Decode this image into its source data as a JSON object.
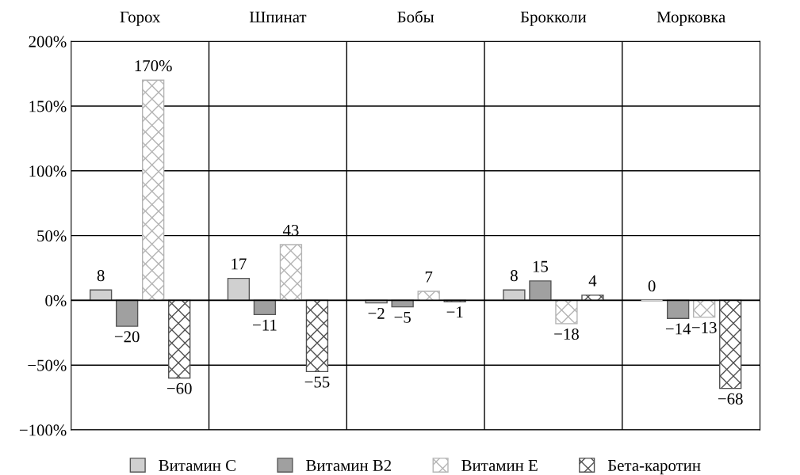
{
  "chart_data": {
    "type": "bar",
    "categories": [
      "Горох",
      "Шпинат",
      "Бобы",
      "Брокколи",
      "Морковка"
    ],
    "series": [
      {
        "name": "Витамин C",
        "color": "#d0d0d0",
        "values": [
          8,
          17,
          -2,
          8,
          0
        ],
        "value_labels": [
          "8",
          "17",
          "−2",
          "8",
          "0"
        ]
      },
      {
        "name": "Витамин B2",
        "color": "#a0a0a0",
        "values": [
          -20,
          -11,
          -5,
          15,
          -14
        ],
        "value_labels": [
          "−20",
          "−11",
          "−5",
          "15",
          "−14"
        ]
      },
      {
        "name": "Витамин E",
        "color": "#b4b4b4",
        "values": [
          170,
          43,
          7,
          -18,
          -13
        ],
        "value_labels": [
          "170%",
          "43",
          "7",
          "−18",
          "−13"
        ]
      },
      {
        "name": "Бета-каротин",
        "color": "#505050",
        "values": [
          -60,
          -55,
          -1,
          4,
          -68
        ],
        "value_labels": [
          "−60",
          "−55",
          "−1",
          "4",
          "−68"
        ]
      }
    ],
    "ylim": [
      -100,
      200
    ],
    "yticks": [
      {
        "value": -100,
        "label": "−100%"
      },
      {
        "value": -50,
        "label": "−50%"
      },
      {
        "value": 0,
        "label": "0%"
      },
      {
        "value": 50,
        "label": "50%"
      },
      {
        "value": 100,
        "label": "100%"
      },
      {
        "value": 150,
        "label": "150%"
      },
      {
        "value": 200,
        "label": "200%"
      }
    ],
    "grid": true,
    "legend": "bottom"
  }
}
